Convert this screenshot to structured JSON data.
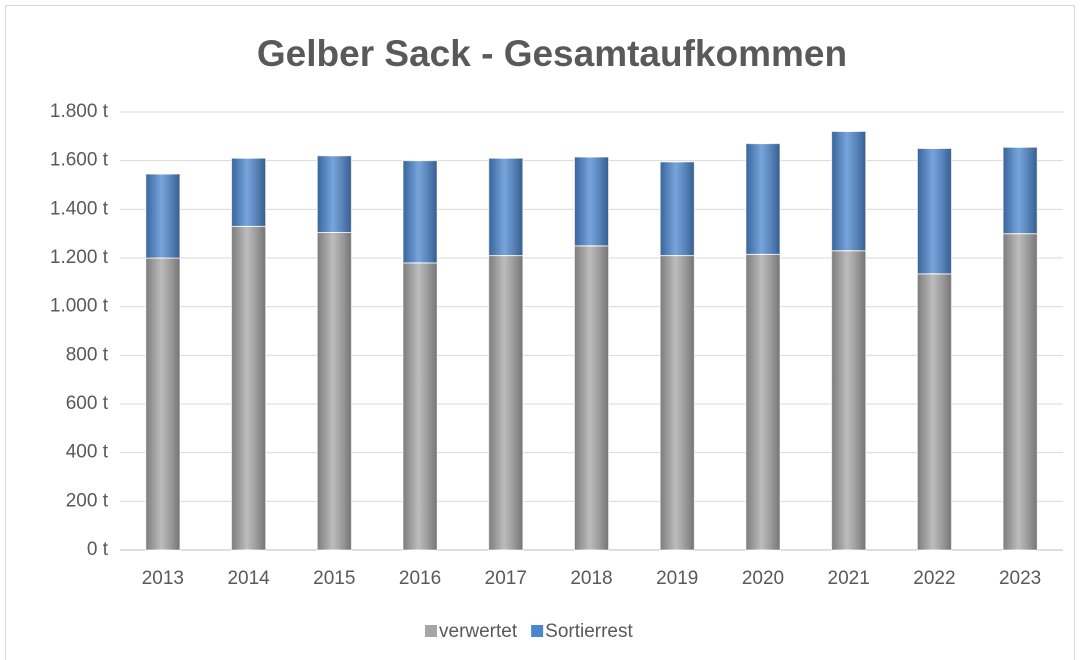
{
  "chart_data": {
    "type": "stacked_bar",
    "title": "Gelber Sack - Gesamtaufkommen",
    "categories": [
      "2013",
      "2014",
      "2015",
      "2016",
      "2017",
      "2018",
      "2019",
      "2020",
      "2021",
      "2022",
      "2023"
    ],
    "series": [
      {
        "name": "verwertet",
        "color": "#a6a6a6",
        "values": [
          1200,
          1330,
          1305,
          1180,
          1210,
          1250,
          1210,
          1215,
          1230,
          1135,
          1300
        ]
      },
      {
        "name": "Sortierrest",
        "color": "#4a86d0",
        "values": [
          345,
          280,
          315,
          420,
          400,
          365,
          385,
          455,
          490,
          515,
          355
        ]
      }
    ],
    "ylim": [
      0,
      1800
    ],
    "yticks": [
      {
        "value": 0,
        "label": "0 t"
      },
      {
        "value": 200,
        "label": "200 t"
      },
      {
        "value": 400,
        "label": "400 t"
      },
      {
        "value": 600,
        "label": "600 t"
      },
      {
        "value": 800,
        "label": "800 t"
      },
      {
        "value": 1000,
        "label": "1.000 t"
      },
      {
        "value": 1200,
        "label": "1.200 t"
      },
      {
        "value": 1400,
        "label": "1.400 t"
      },
      {
        "value": 1600,
        "label": "1.600 t"
      },
      {
        "value": 1800,
        "label": "1.800 t"
      }
    ],
    "grid": true,
    "legend": "bottom"
  }
}
